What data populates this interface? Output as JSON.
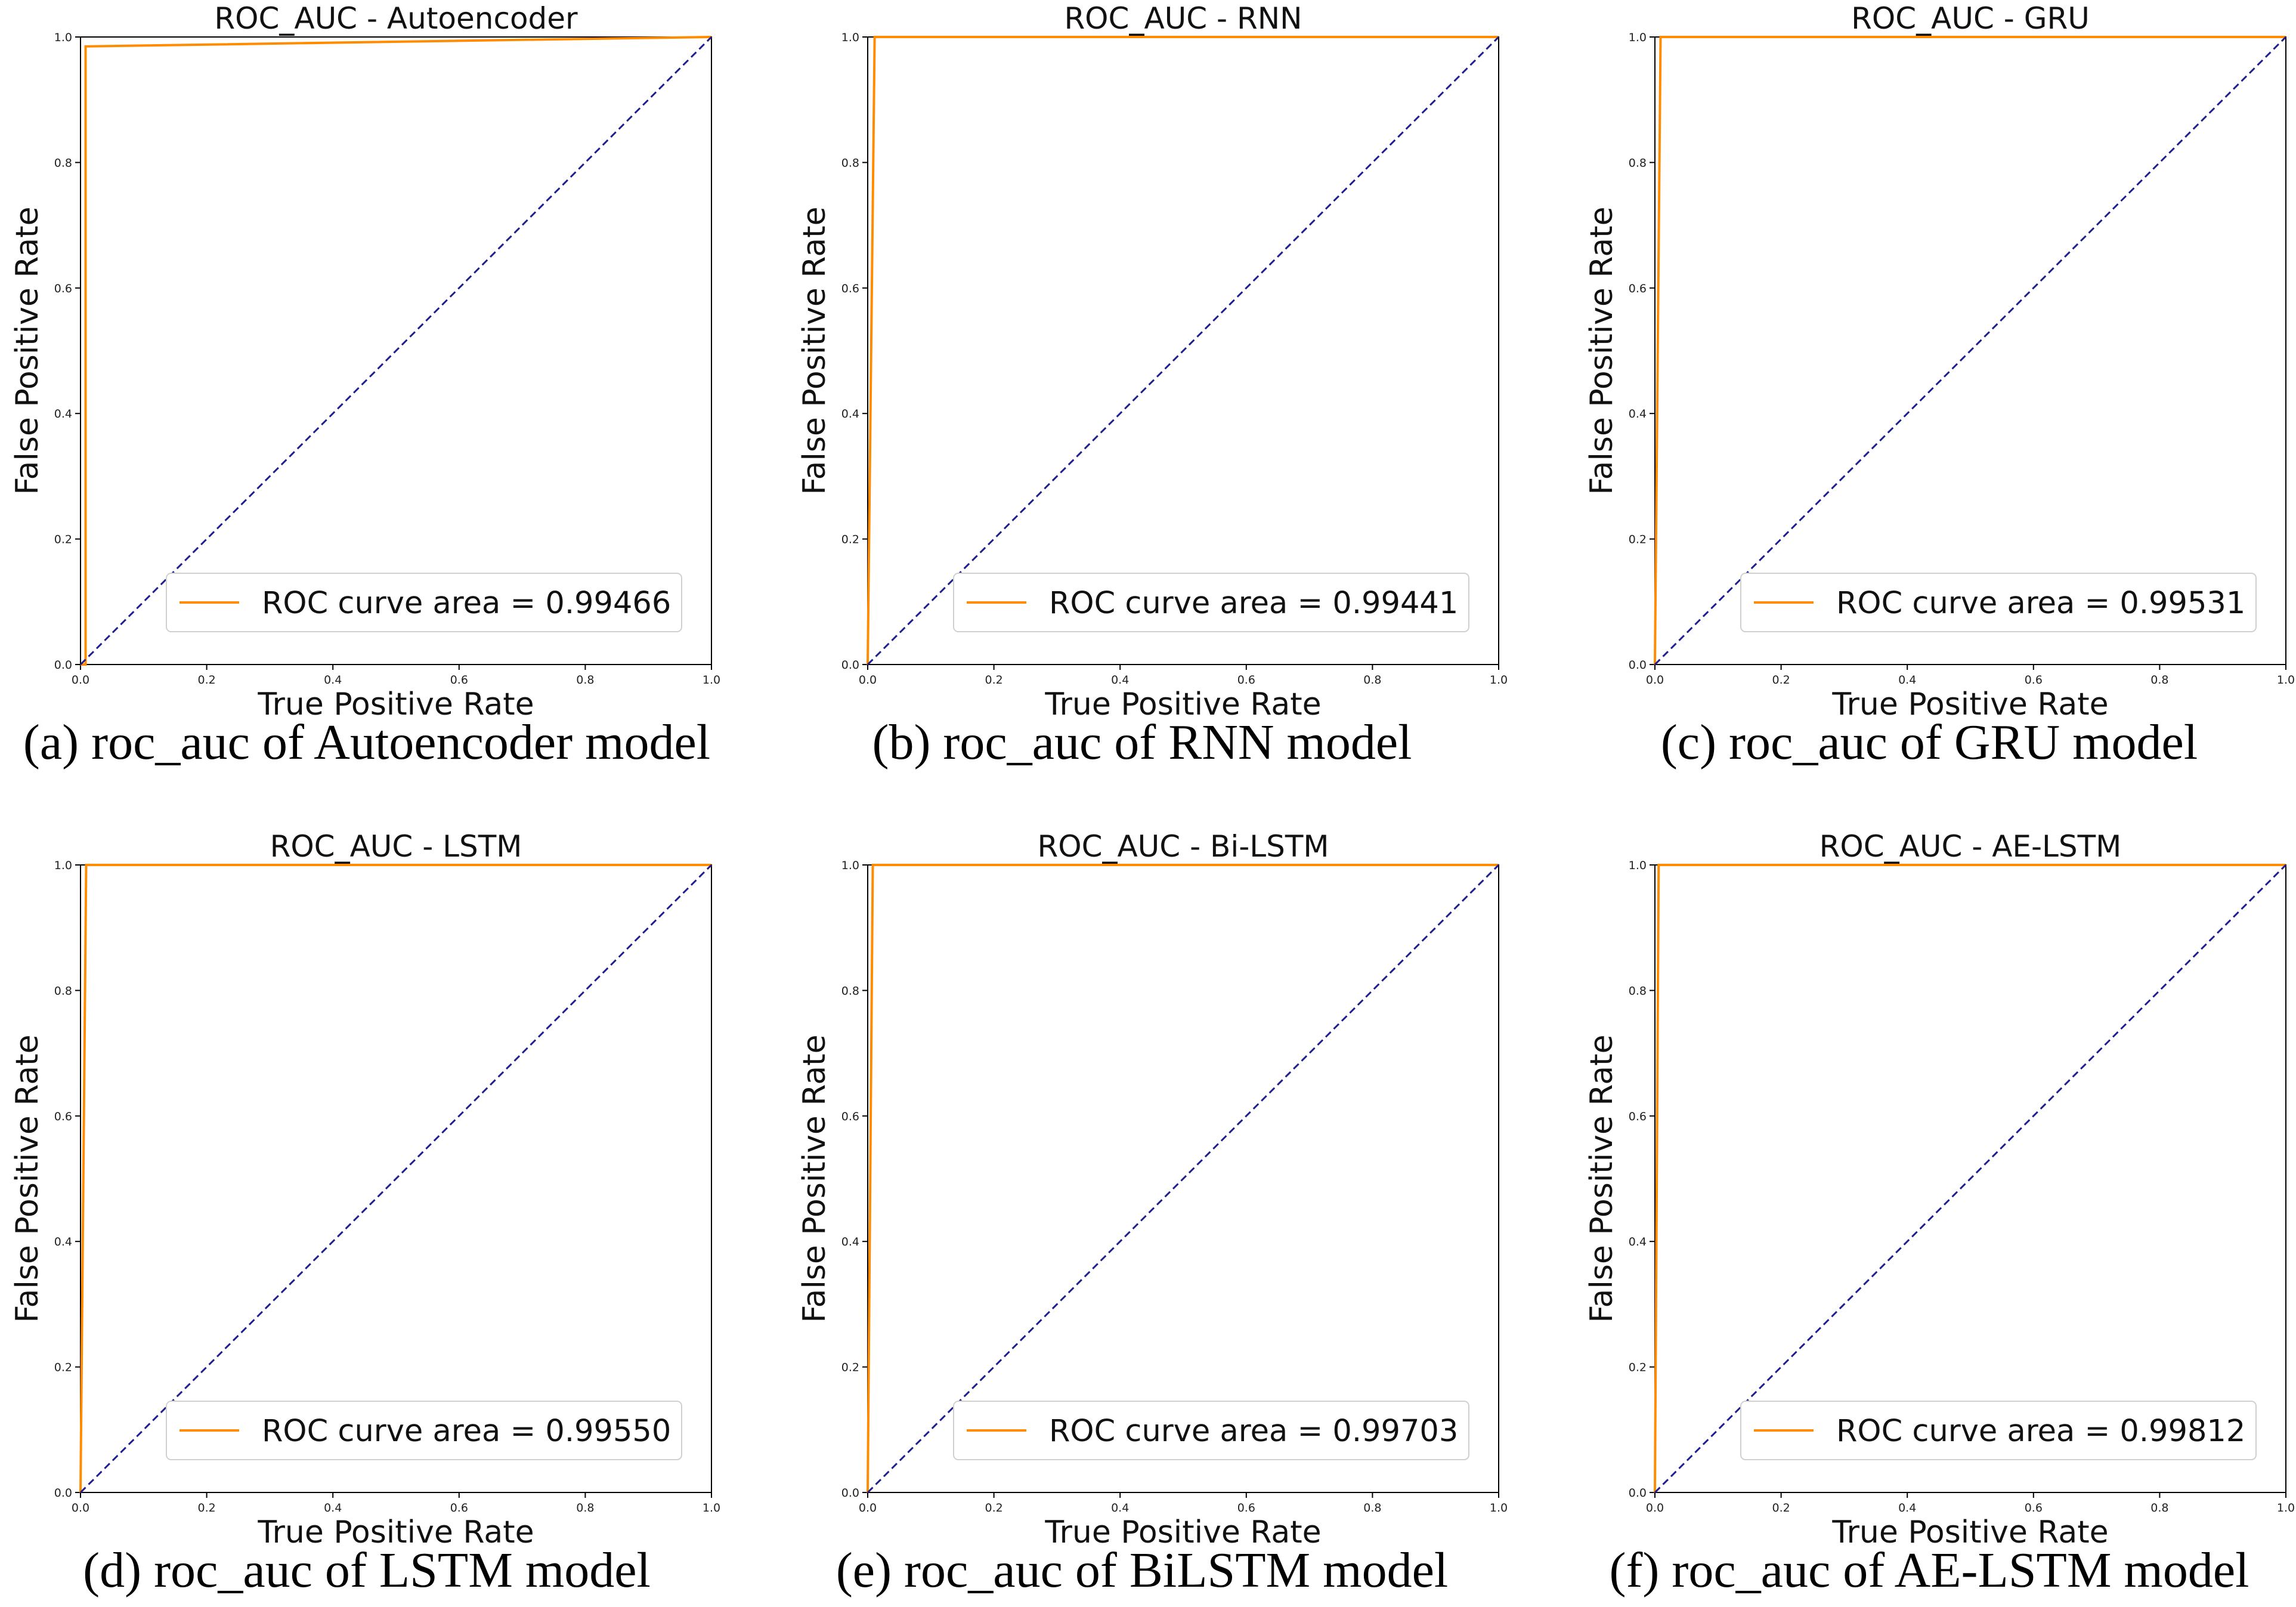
{
  "figure": {
    "background": "#ffffff"
  },
  "style": {
    "curve_color": "#ff8c00",
    "diagonal_color": "#1f1f8f",
    "axis_color": "#000000"
  },
  "chart_data": [
    {
      "type": "line",
      "title": "ROC_AUC - Autoencoder",
      "xlabel": "True Positive Rate",
      "ylabel": "False Positive Rate",
      "xlim": [
        0.0,
        1.0
      ],
      "ylim": [
        0.0,
        1.0
      ],
      "xticks": [
        "0.0",
        "0.2",
        "0.4",
        "0.6",
        "0.8",
        "1.0"
      ],
      "yticks": [
        "0.0",
        "0.2",
        "0.4",
        "0.6",
        "0.8",
        "1.0"
      ],
      "legend_position": "lower-right",
      "grid": false,
      "series": [
        {
          "name": "ROC curve area = 0.99466",
          "style": "solid",
          "x": [
            0.0,
            0.008,
            0.008,
            1.0
          ],
          "y": [
            0.0,
            0.0,
            0.985,
            1.0
          ]
        },
        {
          "name": "chance",
          "style": "dashed",
          "x": [
            0.0,
            1.0
          ],
          "y": [
            0.0,
            1.0
          ]
        }
      ],
      "caption": "(a) roc_auc of Autoencoder model"
    },
    {
      "type": "line",
      "title": "ROC_AUC - RNN",
      "xlabel": "True Positive Rate",
      "ylabel": "False Positive Rate",
      "xlim": [
        0.0,
        1.0
      ],
      "ylim": [
        0.0,
        1.0
      ],
      "xticks": [
        "0.0",
        "0.2",
        "0.4",
        "0.6",
        "0.8",
        "1.0"
      ],
      "yticks": [
        "0.0",
        "0.2",
        "0.4",
        "0.6",
        "0.8",
        "1.0"
      ],
      "legend_position": "lower-right",
      "grid": false,
      "series": [
        {
          "name": "ROC curve area = 0.99441",
          "style": "solid",
          "x": [
            0.0,
            0.011,
            1.0
          ],
          "y": [
            0.0,
            1.0,
            1.0
          ]
        },
        {
          "name": "chance",
          "style": "dashed",
          "x": [
            0.0,
            1.0
          ],
          "y": [
            0.0,
            1.0
          ]
        }
      ],
      "caption": "(b) roc_auc of RNN model"
    },
    {
      "type": "line",
      "title": "ROC_AUC - GRU",
      "xlabel": "True Positive Rate",
      "ylabel": "False Positive Rate",
      "xlim": [
        0.0,
        1.0
      ],
      "ylim": [
        0.0,
        1.0
      ],
      "xticks": [
        "0.0",
        "0.2",
        "0.4",
        "0.6",
        "0.8",
        "1.0"
      ],
      "yticks": [
        "0.0",
        "0.2",
        "0.4",
        "0.6",
        "0.8",
        "1.0"
      ],
      "legend_position": "lower-right",
      "grid": false,
      "series": [
        {
          "name": "ROC curve area = 0.99531",
          "style": "solid",
          "x": [
            0.0,
            0.0,
            0.009,
            1.0
          ],
          "y": [
            0.0,
            0.0,
            1.0,
            1.0
          ]
        },
        {
          "name": "chance",
          "style": "dashed",
          "x": [
            0.0,
            1.0
          ],
          "y": [
            0.0,
            1.0
          ]
        }
      ],
      "caption": "(c) roc_auc of GRU model"
    },
    {
      "type": "line",
      "title": "ROC_AUC - LSTM",
      "xlabel": "True Positive Rate",
      "ylabel": "False Positive Rate",
      "xlim": [
        0.0,
        1.0
      ],
      "ylim": [
        0.0,
        1.0
      ],
      "xticks": [
        "0.0",
        "0.2",
        "0.4",
        "0.6",
        "0.8",
        "1.0"
      ],
      "yticks": [
        "0.0",
        "0.2",
        "0.4",
        "0.6",
        "0.8",
        "1.0"
      ],
      "legend_position": "lower-right",
      "grid": false,
      "series": [
        {
          "name": "ROC curve area = 0.99550",
          "style": "solid",
          "x": [
            0.0,
            0.009,
            1.0
          ],
          "y": [
            0.0,
            1.0,
            1.0
          ]
        },
        {
          "name": "chance",
          "style": "dashed",
          "x": [
            0.0,
            1.0
          ],
          "y": [
            0.0,
            1.0
          ]
        }
      ],
      "caption": "(d) roc_auc of LSTM model"
    },
    {
      "type": "line",
      "title": "ROC_AUC - Bi-LSTM",
      "xlabel": "True Positive Rate",
      "ylabel": "False Positive Rate",
      "xlim": [
        0.0,
        1.0
      ],
      "ylim": [
        0.0,
        1.0
      ],
      "xticks": [
        "0.0",
        "0.2",
        "0.4",
        "0.6",
        "0.8",
        "1.0"
      ],
      "yticks": [
        "0.0",
        "0.2",
        "0.4",
        "0.6",
        "0.8",
        "1.0"
      ],
      "legend_position": "lower-right",
      "grid": false,
      "series": [
        {
          "name": "ROC curve area = 0.99703",
          "style": "solid",
          "x": [
            0.0,
            0.008,
            1.0
          ],
          "y": [
            0.0,
            1.0,
            1.0
          ]
        },
        {
          "name": "chance",
          "style": "dashed",
          "x": [
            0.0,
            1.0
          ],
          "y": [
            0.0,
            1.0
          ]
        }
      ],
      "caption": "(e) roc_auc of BiLSTM model"
    },
    {
      "type": "line",
      "title": "ROC_AUC - AE-LSTM",
      "xlabel": "True Positive Rate",
      "ylabel": "False Positive Rate",
      "xlim": [
        0.0,
        1.0
      ],
      "ylim": [
        0.0,
        1.0
      ],
      "xticks": [
        "0.0",
        "0.2",
        "0.4",
        "0.6",
        "0.8",
        "1.0"
      ],
      "yticks": [
        "0.0",
        "0.2",
        "0.4",
        "0.6",
        "0.8",
        "1.0"
      ],
      "legend_position": "lower-right",
      "grid": false,
      "series": [
        {
          "name": "ROC curve area = 0.99812",
          "style": "solid",
          "x": [
            0.0,
            0.0,
            0.006,
            1.0
          ],
          "y": [
            0.0,
            0.0,
            1.0,
            1.0
          ]
        },
        {
          "name": "chance",
          "style": "dashed",
          "x": [
            0.0,
            1.0
          ],
          "y": [
            0.0,
            1.0
          ]
        }
      ],
      "caption": "(f) roc_auc of AE-LSTM model"
    }
  ]
}
